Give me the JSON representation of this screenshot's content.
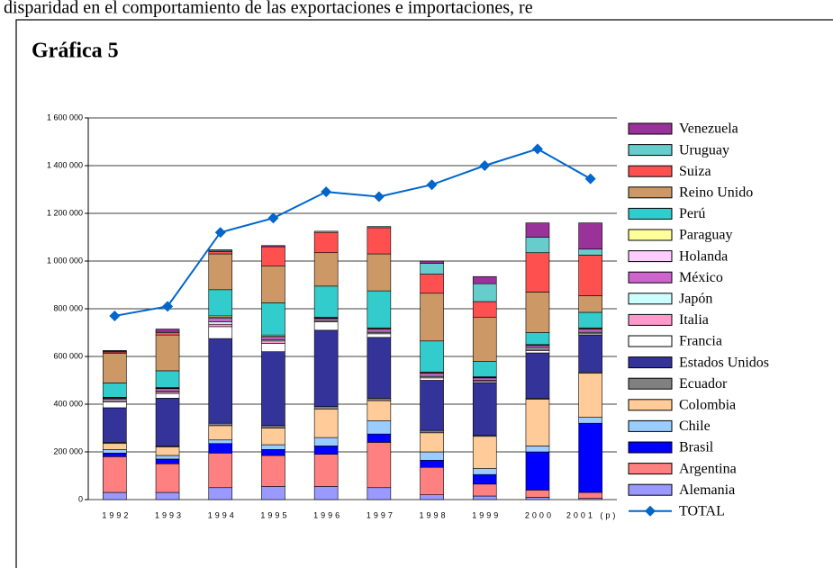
{
  "header_text": "disparidad en el comportamiento de las exportaciones e importaciones, re",
  "chart_data": {
    "type": "bar",
    "stacked": true,
    "title": "Gráfica 5",
    "categories": [
      "1992",
      "1993",
      "1994",
      "1995",
      "1996",
      "1997",
      "1998",
      "1999",
      "2000",
      "2001 (p)"
    ],
    "ylim": [
      0,
      1600000
    ],
    "yticks": [
      {
        "value": 0,
        "label": "0"
      },
      {
        "value": 200000,
        "label": "200 000"
      },
      {
        "value": 400000,
        "label": "400 000"
      },
      {
        "value": 600000,
        "label": "600 000"
      },
      {
        "value": 800000,
        "label": "800 000"
      },
      {
        "value": 1000000,
        "label": "1 000 000"
      },
      {
        "value": 1200000,
        "label": "1 200 000"
      },
      {
        "value": 1400000,
        "label": "1 400 000"
      },
      {
        "value": 1600000,
        "label": "1 600 000"
      }
    ],
    "grid": true,
    "series": [
      {
        "name": "Alemania",
        "color": "#9999ff",
        "values": [
          30000,
          30000,
          50000,
          55000,
          55000,
          50000,
          20000,
          15000,
          10000,
          5000
        ]
      },
      {
        "name": "Argentina",
        "color": "#ff8080",
        "values": [
          150000,
          120000,
          145000,
          130000,
          135000,
          190000,
          115000,
          50000,
          30000,
          25000
        ]
      },
      {
        "name": "Brasil",
        "color": "#0000ff",
        "values": [
          15000,
          20000,
          40000,
          25000,
          35000,
          35000,
          30000,
          40000,
          160000,
          290000
        ]
      },
      {
        "name": "Chile",
        "color": "#99ccff",
        "values": [
          15000,
          15000,
          15000,
          20000,
          35000,
          55000,
          35000,
          25000,
          25000,
          25000
        ]
      },
      {
        "name": "Colombia",
        "color": "#ffcc99",
        "values": [
          25000,
          35000,
          60000,
          70000,
          120000,
          85000,
          80000,
          135000,
          195000,
          185000
        ]
      },
      {
        "name": "Ecuador",
        "color": "#808080",
        "values": [
          5000,
          5000,
          10000,
          10000,
          10000,
          10000,
          10000,
          5000,
          5000,
          5000
        ]
      },
      {
        "name": "Estados Unidos",
        "color": "#333399",
        "values": [
          145000,
          200000,
          355000,
          310000,
          320000,
          255000,
          210000,
          220000,
          190000,
          155000
        ]
      },
      {
        "name": "Francia",
        "color": "#ffffff",
        "values": [
          25000,
          20000,
          50000,
          35000,
          35000,
          15000,
          10000,
          5000,
          10000,
          5000
        ]
      },
      {
        "name": "Italia",
        "color": "#ff99cc",
        "values": [
          5000,
          5000,
          10000,
          10000,
          5000,
          5000,
          5000,
          5000,
          5000,
          5000
        ]
      },
      {
        "name": "Japón",
        "color": "#ccffff",
        "values": [
          5000,
          5000,
          10000,
          5000,
          5000,
          5000,
          5000,
          0,
          5000,
          5000
        ]
      },
      {
        "name": "México",
        "color": "#cc66cc",
        "values": [
          5000,
          10000,
          15000,
          10000,
          5000,
          10000,
          10000,
          10000,
          10000,
          10000
        ]
      },
      {
        "name": "Holanda",
        "color": "#ffccff",
        "values": [
          2000,
          2000,
          5000,
          5000,
          2000,
          2000,
          2000,
          2000,
          2000,
          2000
        ]
      },
      {
        "name": "Paraguay",
        "color": "#ffff99",
        "values": [
          2000,
          3000,
          5000,
          5000,
          3000,
          3000,
          3000,
          3000,
          3000,
          3000
        ]
      },
      {
        "name": "Perú",
        "color": "#33cccc",
        "values": [
          60000,
          70000,
          110000,
          135000,
          130000,
          155000,
          130000,
          65000,
          50000,
          65000
        ]
      },
      {
        "name": "Reino Unido",
        "color": "#cc9966",
        "values": [
          125000,
          150000,
          150000,
          155000,
          140000,
          155000,
          200000,
          185000,
          170000,
          70000
        ]
      },
      {
        "name": "Suiza",
        "color": "#ff5050",
        "values": [
          5000,
          10000,
          10000,
          80000,
          85000,
          110000,
          80000,
          65000,
          165000,
          170000
        ]
      },
      {
        "name": "Uruguay",
        "color": "#66cccc",
        "values": [
          3000,
          5000,
          5000,
          0,
          5000,
          5000,
          45000,
          75000,
          65000,
          25000
        ]
      },
      {
        "name": "Venezuela",
        "color": "#993399",
        "values": [
          3000,
          10000,
          2000,
          5000,
          0,
          0,
          10000,
          30000,
          60000,
          110000
        ]
      }
    ],
    "line_series": {
      "name": "TOTAL",
      "color": "#0066cc",
      "values": [
        770000,
        810000,
        1120000,
        1180000,
        1290000,
        1270000,
        1320000,
        1400000,
        1470000,
        1345000
      ]
    }
  }
}
